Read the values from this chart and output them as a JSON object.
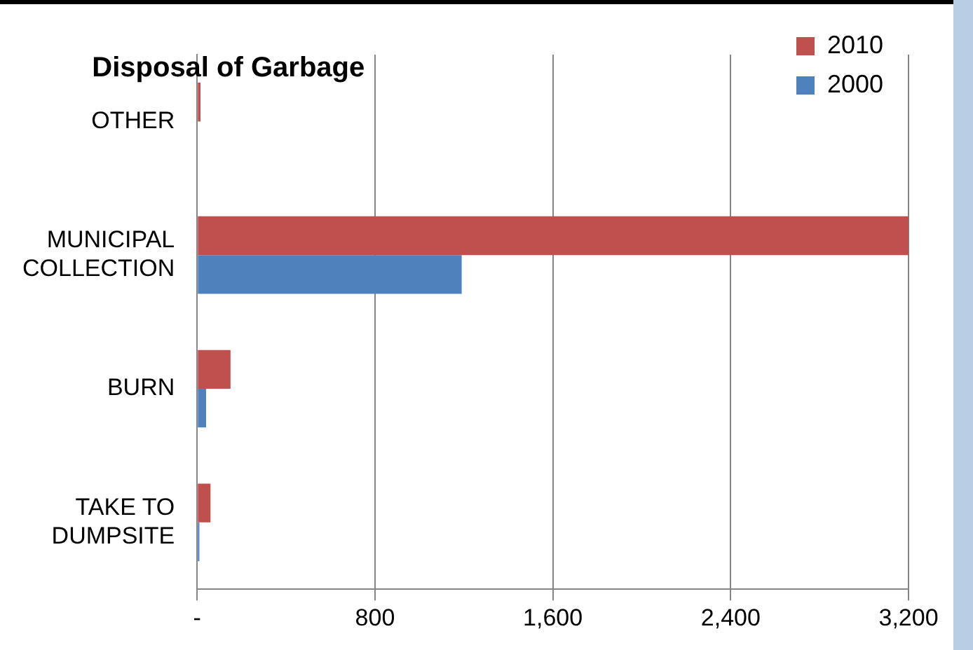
{
  "chart_data": {
    "type": "bar",
    "orientation": "horizontal",
    "title": "Disposal of Garbage",
    "categories": [
      [
        "OTHER"
      ],
      [
        "MUNICIPAL",
        "COLLECTION"
      ],
      [
        "BURN"
      ],
      [
        "TAKE TO",
        "DUMPSITE"
      ]
    ],
    "series": [
      {
        "name": "2010",
        "color": "#c0504d",
        "values": [
          15,
          3200,
          150,
          60
        ]
      },
      {
        "name": "2000",
        "color": "#4f81bd",
        "values": [
          0,
          1190,
          40,
          10
        ]
      }
    ],
    "xlim": [
      0,
      3200
    ],
    "xticks": [
      {
        "value": 0,
        "label": "-"
      },
      800,
      {
        "value": 1600,
        "label": "1,600"
      },
      {
        "value": 2400,
        "label": "2,400"
      },
      {
        "value": 3200,
        "label": "3,200"
      }
    ],
    "grid": "x",
    "legend": "top right"
  }
}
